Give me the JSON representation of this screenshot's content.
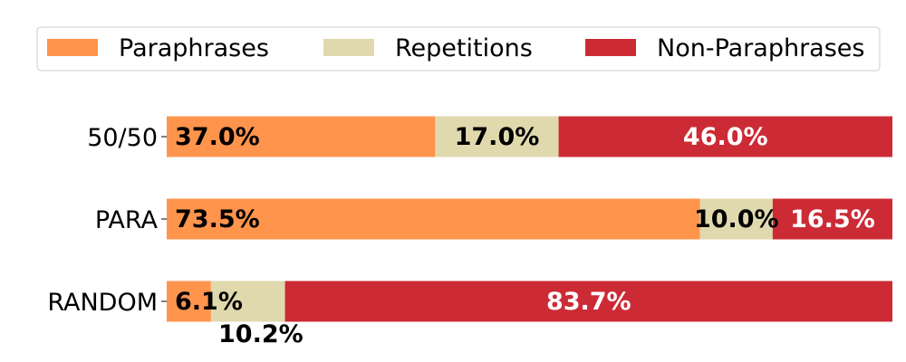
{
  "chart_data": {
    "type": "bar",
    "orientation": "horizontal",
    "stacked": true,
    "normalized": true,
    "categories": [
      "50/50",
      "PARA",
      "RANDOM"
    ],
    "series": [
      {
        "name": "Paraphrases",
        "color": "#ff944d",
        "values": [
          37.0,
          73.5,
          6.1
        ],
        "labels": [
          "37.0%",
          "73.5%",
          "6.1%"
        ],
        "label_color": "#000000"
      },
      {
        "name": "Repetitions",
        "color": "#e0d9ae",
        "values": [
          17.0,
          10.0,
          10.2
        ],
        "labels": [
          "17.0%",
          "10.0%",
          "10.2%"
        ],
        "label_color": "#000000"
      },
      {
        "name": "Non-Paraphrases",
        "color": "#cc2b36",
        "values": [
          46.0,
          16.5,
          83.7
        ],
        "labels": [
          "46.0%",
          "16.5%",
          "83.7%"
        ],
        "label_color": "#ffffff"
      }
    ],
    "xlim": [
      0,
      100
    ],
    "x_axis_visible": false,
    "grid": false,
    "legend_position": "top",
    "title": "",
    "xlabel": "",
    "ylabel": ""
  }
}
